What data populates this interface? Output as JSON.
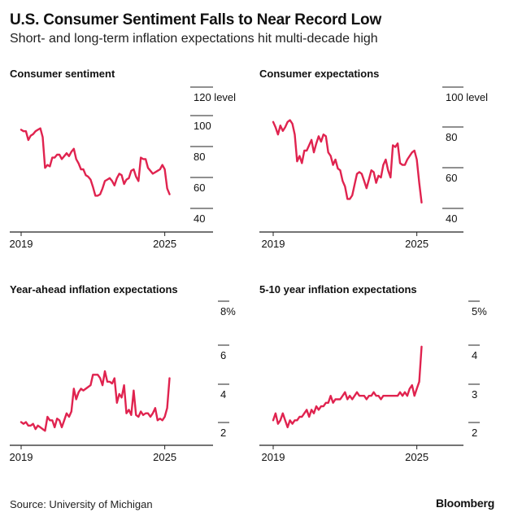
{
  "title": "U.S. Consumer Sentiment Falls to Near Record Low",
  "subtitle": "Short- and long-term inflation expectations hit multi-decade high",
  "source": "Source: University of Michigan",
  "brand": "Bloomberg",
  "colors": {
    "line": "#e0234f",
    "axis": "#222222",
    "text": "#111111"
  },
  "chart_data": [
    {
      "type": "line",
      "title": "Consumer sentiment",
      "x_ticks": [
        "2019",
        "2025"
      ],
      "y_ticks": [
        "40",
        "60",
        "80",
        "100",
        "120 level"
      ],
      "ylim": [
        40,
        120
      ],
      "xlim": [
        2019.0,
        2025.25
      ],
      "grid": false,
      "series": [
        {
          "x": [
            2019.0,
            2019.1,
            2019.2,
            2019.3,
            2019.4,
            2019.5,
            2019.6,
            2019.7,
            2019.8,
            2019.9,
            2020.0,
            2020.1,
            2020.2,
            2020.3,
            2020.4,
            2020.5,
            2020.6,
            2020.7,
            2020.8,
            2020.9,
            2021.0,
            2021.1,
            2021.2,
            2021.3,
            2021.4,
            2021.5,
            2021.6,
            2021.7,
            2021.8,
            2021.9,
            2022.0,
            2022.1,
            2022.2,
            2022.3,
            2022.4,
            2022.5,
            2022.6,
            2022.7,
            2022.8,
            2022.9,
            2023.0,
            2023.1,
            2023.2,
            2023.3,
            2023.4,
            2023.5,
            2023.6,
            2023.7,
            2023.8,
            2023.9,
            2024.0,
            2024.1,
            2024.2,
            2024.3,
            2024.4,
            2024.5,
            2024.6,
            2024.7,
            2024.8,
            2024.9,
            2025.0,
            2025.1,
            2025.2
          ],
          "values": [
            97,
            96,
            96,
            90,
            93,
            94,
            96,
            97,
            98,
            92,
            71,
            73,
            72,
            78,
            78,
            80,
            80,
            77,
            79,
            81,
            79,
            82,
            84,
            77,
            74,
            70,
            70,
            66,
            65,
            63,
            58,
            52,
            52,
            53,
            57,
            62,
            63,
            64,
            62,
            59,
            64,
            67,
            66,
            60,
            63,
            64,
            69,
            70,
            65,
            62,
            78,
            77,
            77,
            71,
            69,
            67,
            68,
            69,
            70,
            73,
            70,
            57,
            53
          ]
        }
      ]
    },
    {
      "type": "line",
      "title": "Consumer expectations",
      "x_ticks": [
        "2019",
        "2025"
      ],
      "y_ticks": [
        "40",
        "60",
        "80",
        "100 level"
      ],
      "ylim": [
        40,
        100
      ],
      "xlim": [
        2019.0,
        2025.25
      ],
      "grid": false,
      "series": [
        {
          "x": [
            2019.0,
            2019.1,
            2019.2,
            2019.3,
            2019.4,
            2019.5,
            2019.6,
            2019.7,
            2019.8,
            2019.9,
            2020.0,
            2020.1,
            2020.2,
            2020.3,
            2020.4,
            2020.5,
            2020.6,
            2020.7,
            2020.8,
            2020.9,
            2021.0,
            2021.1,
            2021.2,
            2021.3,
            2021.4,
            2021.5,
            2021.6,
            2021.7,
            2021.8,
            2021.9,
            2022.0,
            2022.1,
            2022.2,
            2022.3,
            2022.4,
            2022.5,
            2022.6,
            2022.7,
            2022.8,
            2022.9,
            2023.0,
            2023.1,
            2023.2,
            2023.3,
            2023.4,
            2023.5,
            2023.6,
            2023.7,
            2023.8,
            2023.9,
            2024.0,
            2024.1,
            2024.2,
            2024.3,
            2024.4,
            2024.5,
            2024.6,
            2024.7,
            2024.8,
            2024.9,
            2025.0,
            2025.1,
            2025.2
          ],
          "values": [
            91,
            88,
            84,
            89,
            86,
            88,
            91,
            92,
            90,
            84,
            69,
            72,
            68,
            75,
            75,
            78,
            81,
            74,
            79,
            83,
            80,
            84,
            83,
            74,
            72,
            67,
            70,
            65,
            64,
            58,
            55,
            48,
            48,
            50,
            56,
            62,
            63,
            62,
            58,
            54,
            59,
            64,
            63,
            57,
            61,
            60,
            67,
            70,
            64,
            60,
            78,
            77,
            79,
            68,
            67,
            67,
            70,
            72,
            74,
            75,
            70,
            57,
            46
          ]
        }
      ]
    },
    {
      "type": "line",
      "title": "Year-ahead inflation expectations",
      "x_ticks": [
        "2019",
        "2025"
      ],
      "y_ticks": [
        "2",
        "4",
        "6",
        "8%"
      ],
      "ylim": [
        1.5,
        8
      ],
      "xlim": [
        2019.0,
        2025.25
      ],
      "grid": false,
      "series": [
        {
          "x": [
            2019.0,
            2019.1,
            2019.2,
            2019.3,
            2019.4,
            2019.5,
            2019.6,
            2019.7,
            2019.8,
            2019.9,
            2020.0,
            2020.1,
            2020.2,
            2020.3,
            2020.4,
            2020.5,
            2020.6,
            2020.7,
            2020.8,
            2020.9,
            2021.0,
            2021.1,
            2021.2,
            2021.3,
            2021.4,
            2021.5,
            2021.6,
            2021.7,
            2021.8,
            2021.9,
            2022.0,
            2022.1,
            2022.2,
            2022.3,
            2022.4,
            2022.5,
            2022.6,
            2022.7,
            2022.8,
            2022.9,
            2023.0,
            2023.1,
            2023.2,
            2023.3,
            2023.4,
            2023.5,
            2023.6,
            2023.7,
            2023.8,
            2023.9,
            2024.0,
            2024.1,
            2024.2,
            2024.3,
            2024.4,
            2024.5,
            2024.6,
            2024.7,
            2024.8,
            2024.9,
            2025.0,
            2025.1,
            2025.2
          ],
          "values": [
            2.5,
            2.4,
            2.5,
            2.3,
            2.3,
            2.4,
            2.1,
            2.3,
            2.2,
            2.1,
            2.0,
            2.8,
            2.6,
            2.6,
            2.2,
            2.7,
            2.6,
            2.2,
            2.6,
            3.0,
            2.8,
            3.1,
            4.4,
            3.8,
            4.2,
            4.4,
            4.3,
            4.4,
            4.5,
            4.6,
            5.2,
            5.2,
            5.2,
            5.0,
            4.6,
            5.4,
            4.8,
            4.8,
            4.7,
            5.0,
            3.6,
            4.1,
            3.9,
            4.6,
            3.0,
            3.2,
            2.9,
            4.3,
            2.9,
            2.8,
            3.1,
            2.9,
            3.0,
            3.0,
            2.8,
            3.0,
            3.3,
            2.6,
            2.7,
            2.6,
            2.8,
            3.3,
            5.0
          ]
        }
      ]
    },
    {
      "type": "line",
      "title": "5-10 year inflation expectations",
      "x_ticks": [
        "2019",
        "2025"
      ],
      "y_ticks": [
        "2",
        "3",
        "4",
        "5%"
      ],
      "ylim": [
        1.75,
        5
      ],
      "xlim": [
        2019.0,
        2025.25
      ],
      "grid": false,
      "series": [
        {
          "x": [
            2019.0,
            2019.1,
            2019.2,
            2019.3,
            2019.4,
            2019.5,
            2019.6,
            2019.7,
            2019.8,
            2019.9,
            2020.0,
            2020.1,
            2020.2,
            2020.3,
            2020.4,
            2020.5,
            2020.6,
            2020.7,
            2020.8,
            2020.9,
            2021.0,
            2021.1,
            2021.2,
            2021.3,
            2021.4,
            2021.5,
            2021.6,
            2021.7,
            2021.8,
            2021.9,
            2022.0,
            2022.1,
            2022.2,
            2022.3,
            2022.4,
            2022.5,
            2022.6,
            2022.7,
            2022.8,
            2022.9,
            2023.0,
            2023.1,
            2023.2,
            2023.3,
            2023.4,
            2023.5,
            2023.6,
            2023.7,
            2023.8,
            2023.9,
            2024.0,
            2024.1,
            2024.2,
            2024.3,
            2024.4,
            2024.5,
            2024.6,
            2024.7,
            2024.8,
            2024.9,
            2025.0,
            2025.1,
            2025.2
          ],
          "values": [
            2.3,
            2.5,
            2.2,
            2.3,
            2.5,
            2.3,
            2.1,
            2.3,
            2.2,
            2.3,
            2.3,
            2.4,
            2.4,
            2.5,
            2.6,
            2.4,
            2.6,
            2.5,
            2.7,
            2.6,
            2.7,
            2.7,
            2.8,
            2.8,
            3.0,
            2.8,
            2.9,
            2.9,
            2.9,
            3.0,
            3.1,
            2.9,
            3.0,
            2.9,
            3.0,
            3.1,
            3.0,
            3.0,
            3.0,
            2.9,
            3.0,
            3.0,
            3.1,
            3.0,
            3.0,
            2.9,
            3.0,
            3.0,
            3.0,
            3.0,
            3.0,
            3.0,
            3.0,
            3.1,
            3.0,
            3.1,
            3.0,
            3.2,
            3.3,
            3.0,
            3.2,
            3.4,
            4.4
          ]
        }
      ]
    }
  ]
}
